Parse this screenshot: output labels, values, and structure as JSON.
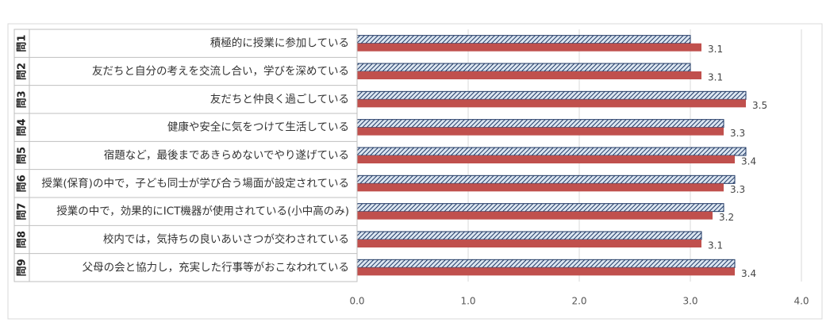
{
  "chart_data": {
    "type": "bar",
    "orientation": "horizontal",
    "category_groups": [
      "問1",
      "問2",
      "問3",
      "問4",
      "問5",
      "問6",
      "問7",
      "問8",
      "問9"
    ],
    "categories": [
      "積極的に授業に参加している",
      "友だちと自分の考えを交流し合い，学びを深めている",
      "友だちと仲良く過ごしている",
      "健康や安全に気をつけて生活している",
      "宿題など，最後まであきらめないでやり遂げている",
      "授業(保育)の中で，子ども同士が学び合う場面が設定されている",
      "授業の中で，効果的にICT機器が使用されている(小中高のみ)",
      "校内では，気持ちの良いあいさつが交わされている",
      "父母の会と協力し，充実した行事等がおこなわれている"
    ],
    "series": [
      {
        "color": "#b8cce4",
        "pattern": "hatch",
        "values": [
          3.0,
          3.0,
          3.5,
          3.3,
          3.5,
          3.4,
          3.3,
          3.1,
          3.4
        ]
      },
      {
        "color": "#c0504d",
        "values": [
          3.1,
          3.1,
          3.5,
          3.3,
          3.4,
          3.3,
          3.2,
          3.1,
          3.4
        ],
        "show_labels": true
      }
    ],
    "xlim": [
      0,
      4
    ],
    "xticks": [
      {
        "value": 0,
        "label": "0.0"
      },
      {
        "value": 1,
        "label": "1.0"
      },
      {
        "value": 2,
        "label": "2.0"
      },
      {
        "value": 3,
        "label": "3.0"
      },
      {
        "value": 4,
        "label": "4.0"
      }
    ],
    "grid": true
  }
}
